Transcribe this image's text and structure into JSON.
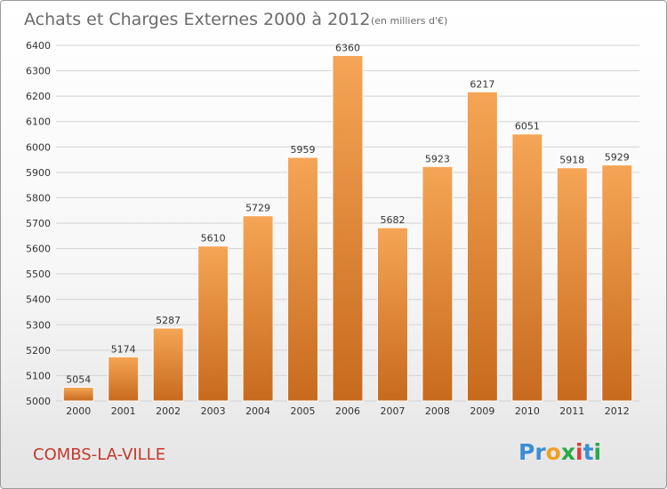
{
  "chart_data": {
    "type": "bar",
    "title": "Achats et Charges Externes 2000 à 2012",
    "subtitle": "(en milliers d'€)",
    "categories": [
      "2000",
      "2001",
      "2002",
      "2003",
      "2004",
      "2005",
      "2006",
      "2007",
      "2008",
      "2009",
      "2010",
      "2011",
      "2012"
    ],
    "values": [
      5054,
      5174,
      5287,
      5610,
      5729,
      5959,
      6360,
      5682,
      5923,
      6217,
      6051,
      5918,
      5929
    ],
    "ylim": [
      5000,
      6400
    ],
    "yticks": [
      5000,
      5100,
      5200,
      5300,
      5400,
      5500,
      5600,
      5700,
      5800,
      5900,
      6000,
      6100,
      6200,
      6300,
      6400
    ],
    "xlabel": "",
    "ylabel": "",
    "grid": true,
    "bar_color": "#f09a4a",
    "bar_color_dark": "#c86a1e"
  },
  "location": "COMBS-LA-VILLE",
  "logo": {
    "letters": [
      "P",
      "r",
      "o",
      "x",
      "i",
      "t",
      "i"
    ],
    "colors": [
      "#3a8ed6",
      "#3a8ed6",
      "#f0a020",
      "#2aa84a",
      "#e03a3a",
      "#3a8ed6",
      "#2aa84a"
    ]
  }
}
